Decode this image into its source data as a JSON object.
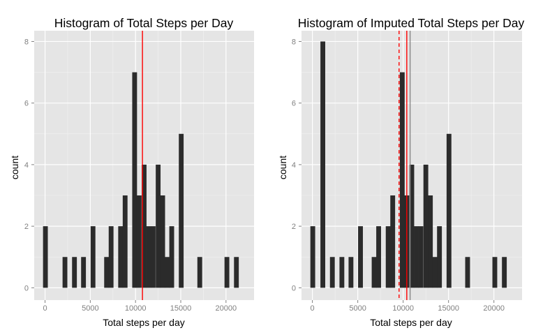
{
  "chart_data": [
    {
      "type": "bar",
      "title": "Histogram of Total Steps per Day",
      "xlabel": "Total steps per day",
      "ylabel": "count",
      "xlim": [
        -1200,
        23100
      ],
      "ylim": [
        -0.4,
        8.35
      ],
      "x_ticks": [
        0,
        5000,
        10000,
        15000,
        20000
      ],
      "x_tick_labels": [
        "0",
        "5000",
        "10000",
        "15000",
        "20000"
      ],
      "y_ticks": [
        0,
        2,
        4,
        6,
        8
      ],
      "y_tick_labels": [
        "0",
        "2",
        "4",
        "6",
        "8"
      ],
      "bin_width": 530,
      "bins": [
        {
          "x": 41,
          "count": 2
        },
        {
          "x": 2200,
          "count": 1
        },
        {
          "x": 3250,
          "count": 1
        },
        {
          "x": 4250,
          "count": 1
        },
        {
          "x": 5300,
          "count": 2
        },
        {
          "x": 6800,
          "count": 1
        },
        {
          "x": 7300,
          "count": 2
        },
        {
          "x": 8350,
          "count": 2
        },
        {
          "x": 8850,
          "count": 3
        },
        {
          "x": 9900,
          "count": 7
        },
        {
          "x": 10400,
          "count": 3
        },
        {
          "x": 10950,
          "count": 4
        },
        {
          "x": 11450,
          "count": 2
        },
        {
          "x": 11950,
          "count": 2
        },
        {
          "x": 12500,
          "count": 4
        },
        {
          "x": 13000,
          "count": 3
        },
        {
          "x": 13500,
          "count": 1
        },
        {
          "x": 14000,
          "count": 2
        },
        {
          "x": 15050,
          "count": 5
        },
        {
          "x": 17100,
          "count": 1
        },
        {
          "x": 20100,
          "count": 1
        },
        {
          "x": 21150,
          "count": 1
        }
      ],
      "vlines": [
        {
          "x": 10766,
          "color": "#ff0000",
          "style": "solid"
        }
      ],
      "grid": true,
      "background": "#e5e5e5",
      "bar_color": "#2b2b2b"
    },
    {
      "type": "bar",
      "title": "Histogram of Imputed Total Steps per Day",
      "xlabel": "Total steps per day",
      "ylabel": "count",
      "xlim": [
        -1200,
        23100
      ],
      "ylim": [
        -0.4,
        8.35
      ],
      "x_ticks": [
        0,
        5000,
        10000,
        15000,
        20000
      ],
      "x_tick_labels": [
        "0",
        "5000",
        "10000",
        "15000",
        "20000"
      ],
      "y_ticks": [
        0,
        2,
        4,
        6,
        8
      ],
      "y_tick_labels": [
        "0",
        "2",
        "4",
        "6",
        "8"
      ],
      "bin_width": 530,
      "bins": [
        {
          "x": 41,
          "count": 2
        },
        {
          "x": 1150,
          "count": 8
        },
        {
          "x": 2200,
          "count": 1
        },
        {
          "x": 3250,
          "count": 1
        },
        {
          "x": 4250,
          "count": 1
        },
        {
          "x": 5300,
          "count": 2
        },
        {
          "x": 6800,
          "count": 1
        },
        {
          "x": 7300,
          "count": 2
        },
        {
          "x": 8350,
          "count": 2
        },
        {
          "x": 8850,
          "count": 3
        },
        {
          "x": 9900,
          "count": 7
        },
        {
          "x": 10400,
          "count": 3
        },
        {
          "x": 10950,
          "count": 4
        },
        {
          "x": 11450,
          "count": 2
        },
        {
          "x": 11950,
          "count": 2
        },
        {
          "x": 12500,
          "count": 4
        },
        {
          "x": 13000,
          "count": 3
        },
        {
          "x": 13500,
          "count": 1
        },
        {
          "x": 14000,
          "count": 2
        },
        {
          "x": 15050,
          "count": 5
        },
        {
          "x": 17100,
          "count": 1
        },
        {
          "x": 20100,
          "count": 1
        },
        {
          "x": 21150,
          "count": 1
        }
      ],
      "vlines": [
        {
          "x": 9550,
          "color": "#ff0000",
          "style": "dashed"
        },
        {
          "x": 10400,
          "color": "#ff0000",
          "style": "solid"
        },
        {
          "x": 10766,
          "color": "#888888",
          "style": "solid"
        }
      ],
      "grid": true,
      "background": "#e5e5e5",
      "bar_color": "#2b2b2b"
    }
  ]
}
